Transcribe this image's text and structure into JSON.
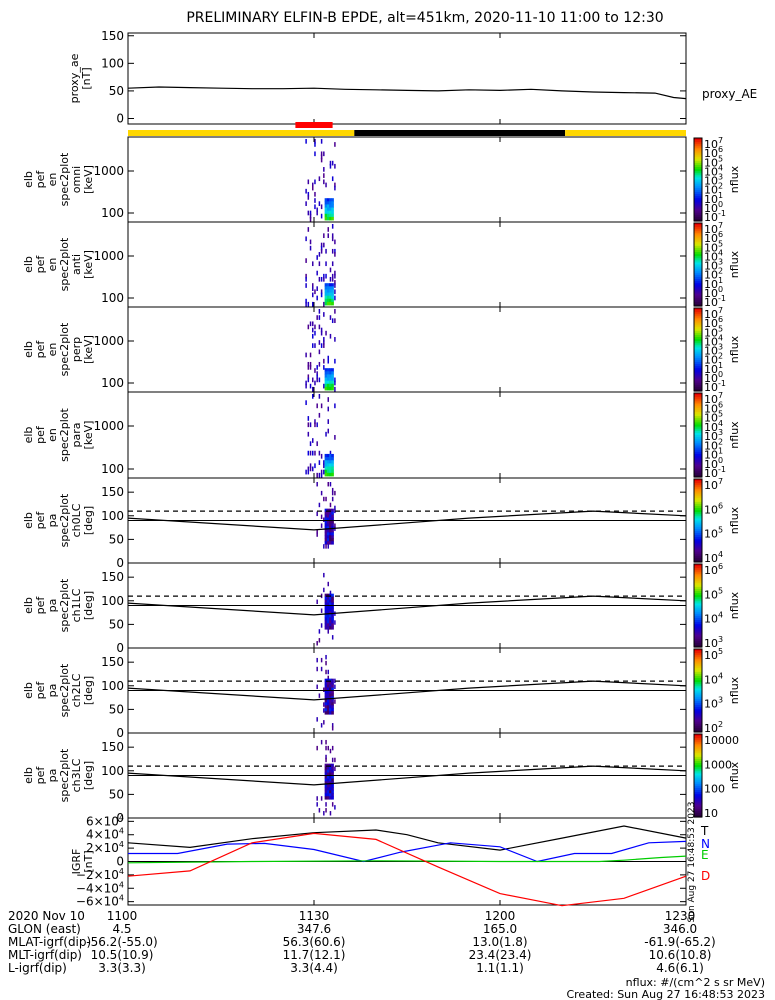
{
  "title": "PRELIMINARY ELFIN-B EPDE, alt=451km, 2020-11-10 11:00 to 12:30",
  "chart_data": [
    {
      "type": "line",
      "panel": "proxy_ae",
      "ylabel": [
        "proxy_ae",
        "[nT]"
      ],
      "legend": "proxy_AE",
      "yticks": [
        "150",
        "100",
        "50",
        "0"
      ],
      "ylim": [
        -10,
        155
      ],
      "x_minutes": [
        0,
        5,
        10,
        15,
        20,
        25,
        30,
        35,
        40,
        45,
        50,
        55,
        60,
        65,
        70,
        75,
        80,
        85,
        88,
        90
      ],
      "y": [
        55,
        57,
        56,
        55,
        54,
        54,
        55,
        53,
        52,
        51,
        50,
        52,
        51,
        53,
        50,
        48,
        47,
        46,
        38,
        36
      ]
    },
    {
      "type": "bar",
      "panel": "status_bar",
      "segments": [
        {
          "start": 0,
          "end": 36.5,
          "color": "#ffd700"
        },
        {
          "start": 36.5,
          "end": 70.5,
          "color": "#000000"
        },
        {
          "start": 70.5,
          "end": 90,
          "color": "#ffd700"
        }
      ],
      "marker": {
        "start": 27,
        "end": 33,
        "color": "#ff0000"
      }
    },
    {
      "type": "heatmap",
      "panel": "en_omni",
      "ylabel": [
        "elb",
        "pef",
        "en",
        "spec2plot",
        "omni",
        "[keV]"
      ],
      "yticks": [
        "1000",
        "100"
      ],
      "colorbar_label": "nflux",
      "colorbar_ticks": [
        "10",
        "10",
        "10",
        "10",
        "10",
        "10",
        "10",
        "10",
        "10"
      ],
      "colorbar_exps": [
        "7",
        "6",
        "5",
        "4",
        "3",
        "2",
        "1",
        "0",
        "-1"
      ]
    },
    {
      "type": "heatmap",
      "panel": "en_anti",
      "ylabel": [
        "elb",
        "pef",
        "en",
        "spec2plot",
        "anti",
        "[keV]"
      ],
      "yticks": [
        "1000",
        "100"
      ],
      "colorbar_label": "nflux",
      "colorbar_ticks": [
        "10",
        "10",
        "10",
        "10",
        "10",
        "10",
        "10",
        "10",
        "10"
      ],
      "colorbar_exps": [
        "7",
        "6",
        "5",
        "4",
        "3",
        "2",
        "1",
        "0",
        "-1"
      ]
    },
    {
      "type": "heatmap",
      "panel": "en_perp",
      "ylabel": [
        "elb",
        "pef",
        "en",
        "spec2plot",
        "perp",
        "[keV]"
      ],
      "yticks": [
        "1000",
        "100"
      ],
      "colorbar_label": "nflux",
      "colorbar_ticks": [
        "10",
        "10",
        "10",
        "10",
        "10",
        "10",
        "10",
        "10",
        "10"
      ],
      "colorbar_exps": [
        "7",
        "6",
        "5",
        "4",
        "3",
        "2",
        "1",
        "0",
        "-1"
      ]
    },
    {
      "type": "heatmap",
      "panel": "en_para",
      "ylabel": [
        "elb",
        "pef",
        "en",
        "spec2plot",
        "para",
        "[keV]"
      ],
      "yticks": [
        "1000",
        "100"
      ],
      "colorbar_label": "nflux",
      "colorbar_ticks": [
        "10",
        "10",
        "10",
        "10",
        "10",
        "10",
        "10",
        "10",
        "10"
      ],
      "colorbar_exps": [
        "7",
        "6",
        "5",
        "4",
        "3",
        "2",
        "1",
        "0",
        "-1"
      ]
    },
    {
      "type": "heatmap",
      "panel": "pa_ch0LC",
      "ylabel": [
        "elb",
        "pef",
        "pa",
        "spec2plot",
        "ch0LC",
        "[deg]"
      ],
      "yticks": [
        "150",
        "100",
        "50",
        "0"
      ],
      "ylim": [
        0,
        180
      ],
      "colorbar_label": "nflux",
      "colorbar_ticks": [
        "10",
        "10",
        "10",
        "10"
      ],
      "colorbar_exps": [
        "7",
        "6",
        "5",
        "4"
      ]
    },
    {
      "type": "heatmap",
      "panel": "pa_ch1LC",
      "ylabel": [
        "elb",
        "pef",
        "pa",
        "spec2plot",
        "ch1LC",
        "[deg]"
      ],
      "yticks": [
        "150",
        "100",
        "50",
        "0"
      ],
      "ylim": [
        0,
        180
      ],
      "colorbar_label": "nflux",
      "colorbar_ticks": [
        "10",
        "10",
        "10",
        "10"
      ],
      "colorbar_exps": [
        "6",
        "5",
        "4",
        "3"
      ]
    },
    {
      "type": "heatmap",
      "panel": "pa_ch2LC",
      "ylabel": [
        "elb",
        "pef",
        "pa",
        "spec2plot",
        "ch2LC",
        "[deg]"
      ],
      "yticks": [
        "150",
        "100",
        "50",
        "0"
      ],
      "ylim": [
        0,
        180
      ],
      "colorbar_label": "nflux",
      "colorbar_ticks": [
        "10",
        "10",
        "10",
        "10"
      ],
      "colorbar_exps": [
        "5",
        "4",
        "3",
        "2"
      ]
    },
    {
      "type": "heatmap",
      "panel": "pa_ch3LC",
      "ylabel": [
        "elb",
        "pef",
        "pa",
        "spec2plot",
        "ch3LC",
        "[deg]"
      ],
      "yticks": [
        "150",
        "100",
        "50",
        "0"
      ],
      "ylim": [
        0,
        180
      ],
      "colorbar_label": "nflux",
      "colorbar_ticks": [
        "10000",
        "1000",
        "100",
        "10"
      ],
      "colorbar_exps": []
    },
    {
      "type": "line",
      "panel": "igrf",
      "ylabel": [
        "IGRF",
        "[nT]"
      ],
      "yticks": [
        "6×10",
        "4×10",
        "2×10",
        "0",
        "−2×10",
        "−4×10",
        "−6×10"
      ],
      "ytick_exps": [
        "4",
        "4",
        "4",
        "",
        "4",
        "4",
        "4"
      ],
      "ylim": [
        -65000,
        65000
      ],
      "legend": [
        "T",
        "N",
        "E",
        "D"
      ],
      "series": [
        {
          "name": "T",
          "color": "#000000",
          "x": [
            0,
            10,
            20,
            30,
            40,
            45,
            50,
            60,
            70,
            80,
            90
          ],
          "y": [
            28000,
            21000,
            34000,
            43000,
            47000,
            40000,
            28000,
            17000,
            35000,
            53000,
            35000
          ]
        },
        {
          "name": "N",
          "color": "#0000ff",
          "x": [
            0,
            8,
            16,
            22,
            30,
            38,
            44,
            52,
            60,
            66,
            72,
            78,
            84,
            90
          ],
          "y": [
            12000,
            12000,
            26000,
            27000,
            18000,
            0,
            14000,
            28000,
            22000,
            0,
            12000,
            12000,
            28000,
            30000
          ]
        },
        {
          "name": "E",
          "color": "#00cc00",
          "x": [
            0,
            20,
            40,
            60,
            76,
            80,
            86,
            90
          ],
          "y": [
            -2000,
            0,
            1000,
            0,
            0,
            2000,
            6000,
            8000
          ]
        },
        {
          "name": "D",
          "color": "#ff0000",
          "x": [
            0,
            10,
            20,
            30,
            40,
            50,
            60,
            70,
            80,
            90
          ],
          "y": [
            -22000,
            -14000,
            28000,
            42000,
            33000,
            -8000,
            -48000,
            -66000,
            -55000,
            -22000
          ]
        }
      ],
      "side_note": "Sun Aug 27 16:48:53 2023"
    }
  ],
  "footer": {
    "rows": [
      {
        "label": "2020 Nov 10",
        "values": [
          "1100",
          "1130",
          "1200",
          "1230"
        ]
      },
      {
        "label": "GLON (east)",
        "values": [
          "4.5",
          "347.6",
          "165.0",
          "346.0"
        ]
      },
      {
        "label": "MLAT-igrf(dip)",
        "values": [
          "-56.2(-55.0)",
          "56.3(60.6)",
          "13.0(1.8)",
          "-61.9(-65.2)"
        ]
      },
      {
        "label": "MLT-igrf(dip)",
        "values": [
          "10.5(10.9)",
          "11.7(12.1)",
          "23.4(23.4)",
          "10.6(10.8)"
        ]
      },
      {
        "label": "L-igrf(dip)",
        "values": [
          "3.3(3.3)",
          "3.3(4.4)",
          "1.1(1.1)",
          "4.6(6.1)"
        ]
      }
    ],
    "units_note": "nflux: #/(cm^2 s sr MeV)",
    "created": "Created: Sun Aug 27 16:48:53 2023"
  }
}
